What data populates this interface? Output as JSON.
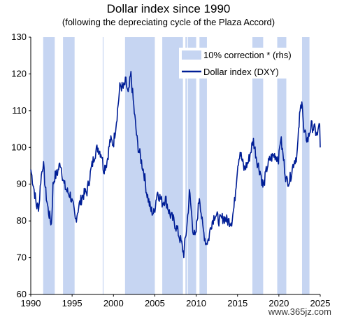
{
  "chart_data": {
    "type": "line",
    "title": "Dollar index since 1990",
    "subtitle": "(following the depreciating cycle of the Plaza Accord)",
    "xlim": [
      1990,
      2025
    ],
    "ylim": [
      60,
      130
    ],
    "x_ticks": [
      1990,
      1995,
      2000,
      2005,
      2010,
      2015,
      2020,
      2025
    ],
    "x_tick_labels": [
      "1990",
      "1995",
      "2000",
      "2005",
      "2010",
      "2015",
      "2020",
      "2025"
    ],
    "y_ticks": [
      60,
      70,
      80,
      90,
      100,
      110,
      120,
      130
    ],
    "y_tick_labels": [
      "60",
      "70",
      "80",
      "90",
      "100",
      "110",
      "120",
      "130"
    ],
    "grid": false,
    "legend": {
      "placement": "top-right",
      "entries": [
        {
          "name": "10% correction * (rhs)",
          "kind": "band",
          "color": "#c6d5f2"
        },
        {
          "name": "Dollar index (DXY)",
          "kind": "line",
          "color": "#001e96"
        }
      ]
    },
    "correction_periods": [
      [
        1991.5,
        1992.9
      ],
      [
        1993.9,
        1995.3
      ],
      [
        1998.7,
        1998.8
      ],
      [
        2001.4,
        2005.0
      ],
      [
        2005.9,
        2008.4
      ],
      [
        2008.7,
        2008.9
      ],
      [
        2009.0,
        2010.0
      ],
      [
        2010.4,
        2011.3
      ],
      [
        2016.8,
        2018.1
      ],
      [
        2019.8,
        2020.9
      ],
      [
        2022.8,
        2023.7
      ]
    ],
    "series": [
      {
        "name": "Dollar index (DXY)",
        "color": "#001e96",
        "x": [
          1990.0,
          1990.3,
          1990.7,
          1991.0,
          1991.2,
          1991.5,
          1991.8,
          1992.1,
          1992.5,
          1992.7,
          1992.9,
          1993.2,
          1993.6,
          1994.0,
          1994.4,
          1994.8,
          1995.2,
          1995.4,
          1995.8,
          1996.3,
          1996.8,
          1997.3,
          1997.7,
          1998.1,
          1998.6,
          1998.8,
          1999.2,
          1999.6,
          2000.0,
          2000.4,
          2000.8,
          2001.2,
          2001.5,
          2001.8,
          2002.1,
          2002.5,
          2002.9,
          2003.3,
          2003.7,
          2004.0,
          2004.5,
          2004.9,
          2005.3,
          2005.9,
          2006.3,
          2006.8,
          2007.3,
          2007.8,
          2008.2,
          2008.5,
          2008.9,
          2009.2,
          2009.6,
          2009.9,
          2010.4,
          2010.8,
          2011.2,
          2011.5,
          2011.8,
          2012.3,
          2012.8,
          2013.3,
          2013.8,
          2014.3,
          2014.6,
          2015.0,
          2015.3,
          2015.8,
          2016.3,
          2016.9,
          2017.4,
          2017.8,
          2018.1,
          2018.6,
          2019.0,
          2019.5,
          2020.0,
          2020.2,
          2020.6,
          2020.9,
          2021.3,
          2021.8,
          2022.2,
          2022.5,
          2022.8,
          2023.0,
          2023.5,
          2023.9,
          2024.3,
          2024.7,
          2024.9,
          2025.0
        ],
        "y": [
          94,
          90,
          84,
          84,
          91,
          96,
          88,
          83,
          79,
          90,
          92,
          93,
          96,
          90,
          88,
          87,
          83,
          80,
          84,
          87,
          88,
          94,
          98,
          100,
          98,
          94,
          96,
          102,
          101,
          108,
          117,
          116,
          118,
          114,
          120,
          110,
          101,
          97,
          93,
          88,
          83,
          82,
          88,
          85,
          86,
          82,
          80,
          77,
          74,
          71,
          79,
          88,
          78,
          75,
          87,
          78,
          74,
          75,
          79,
          82,
          80,
          81,
          80,
          80,
          84,
          95,
          99,
          94,
          96,
          102,
          96,
          93,
          89,
          95,
          97,
          98,
          97,
          103,
          96,
          91,
          91,
          96,
          98,
          108,
          114,
          104,
          102,
          106,
          105,
          103,
          108,
          100
        ]
      }
    ]
  },
  "watermark": "www.365jz.com"
}
